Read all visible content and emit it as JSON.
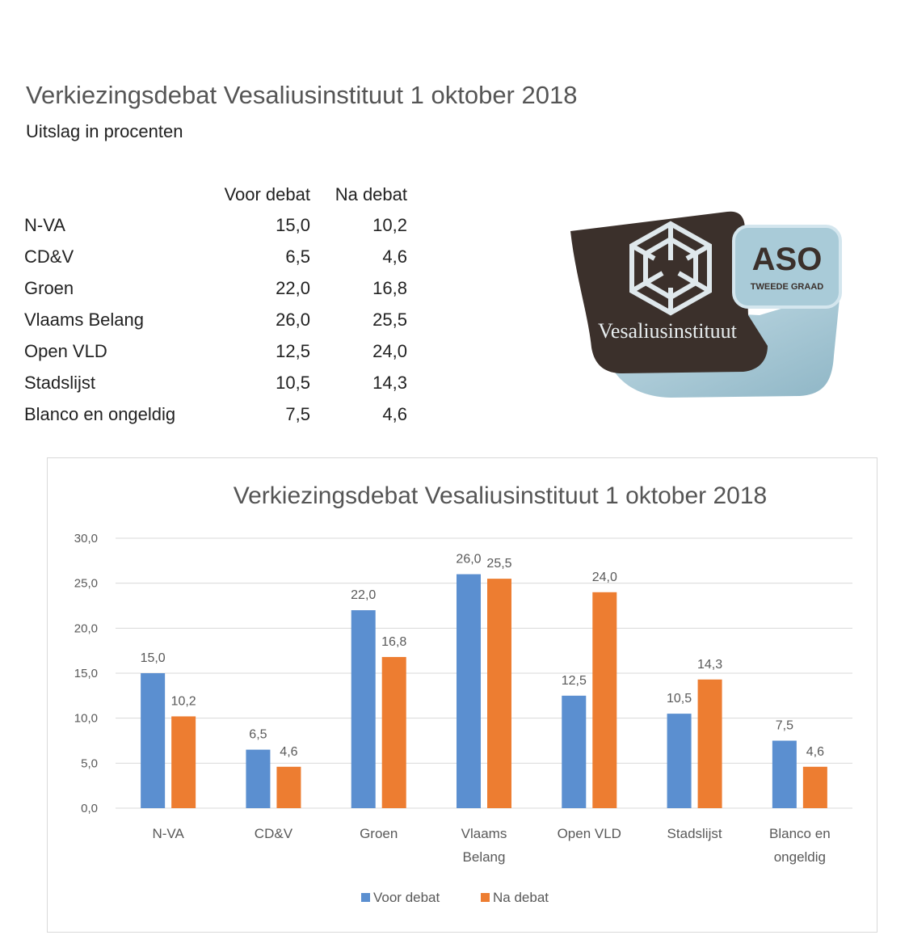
{
  "header": {
    "title": "Verkiezingsdebat Vesaliusinstituut 1 oktober 2018",
    "subtitle": "Uitslag in procenten"
  },
  "table": {
    "columns": [
      "Voor debat",
      "Na debat"
    ],
    "rows": [
      {
        "party": "N-VA",
        "voor": "15,0",
        "na": "10,2"
      },
      {
        "party": "CD&V",
        "voor": "6,5",
        "na": "4,6"
      },
      {
        "party": "Groen",
        "voor": "22,0",
        "na": "16,8"
      },
      {
        "party": "Vlaams Belang",
        "voor": "26,0",
        "na": "25,5"
      },
      {
        "party": "Open VLD",
        "voor": "12,5",
        "na": "24,0"
      },
      {
        "party": "Stadslijst",
        "voor": "10,5",
        "na": "14,3"
      },
      {
        "party": "Blanco en ongeldig",
        "voor": "7,5",
        "na": "4,6"
      }
    ]
  },
  "logo": {
    "name": "Vesaliusinstituut",
    "badge": "ASO",
    "badge_sub": "TWEEDE GRAAD",
    "colors": {
      "dark": "#3a2f2b",
      "light": "#a9cbd8"
    }
  },
  "chart_data": {
    "type": "bar",
    "title": "Verkiezingsdebat Vesaliusinstituut 1 oktober 2018",
    "categories": [
      [
        "N-VA"
      ],
      [
        "CD&V"
      ],
      [
        "Groen"
      ],
      [
        "Vlaams",
        "Belang"
      ],
      [
        "Open VLD"
      ],
      [
        "Stadslijst"
      ],
      [
        "Blanco en",
        "ongeldig"
      ]
    ],
    "series": [
      {
        "name": "Voor debat",
        "color": "#5b8fd0",
        "values": [
          15.0,
          6.5,
          22.0,
          26.0,
          12.5,
          10.5,
          7.5
        ]
      },
      {
        "name": "Na debat",
        "color": "#ed7d31",
        "values": [
          10.2,
          4.6,
          16.8,
          25.5,
          24.0,
          14.3,
          4.6
        ]
      }
    ],
    "ylim": [
      0,
      30
    ],
    "yticks": [
      "0,0",
      "5,0",
      "10,0",
      "15,0",
      "20,0",
      "25,0",
      "30,0"
    ],
    "grid": true,
    "legend": "bottom"
  }
}
